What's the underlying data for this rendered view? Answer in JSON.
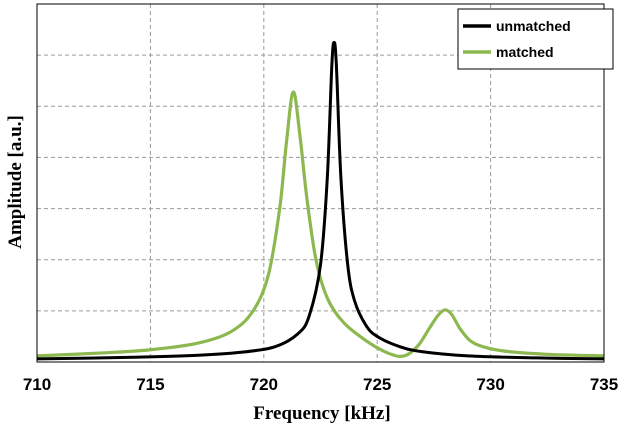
{
  "chart_data": {
    "type": "line",
    "xlabel": "Frequency [kHz]",
    "ylabel": "Amplitude [a.u.]",
    "xlim": [
      710,
      735
    ],
    "ylim": [
      0,
      7
    ],
    "x_ticks": [
      710,
      715,
      720,
      725,
      730,
      735
    ],
    "y_tick_labels_shown": false,
    "grid": true,
    "legend_position": "top-right",
    "series": [
      {
        "name": "unmatched",
        "color": "#000000",
        "x": [
          710,
          714,
          717,
          719,
          720.5,
          721.5,
          722,
          722.5,
          722.8,
          723.0,
          723.1,
          723.2,
          723.4,
          723.7,
          724.0,
          724.5,
          725,
          726,
          727,
          729,
          732,
          735
        ],
        "y": [
          0.06,
          0.09,
          0.13,
          0.19,
          0.3,
          0.55,
          0.9,
          1.9,
          3.6,
          5.8,
          6.25,
          5.8,
          3.6,
          1.9,
          1.2,
          0.72,
          0.5,
          0.3,
          0.2,
          0.12,
          0.08,
          0.06
        ]
      },
      {
        "name": "matched",
        "color": "#8db84f",
        "x": [
          710,
          713,
          715,
          717,
          718.5,
          719.5,
          720.2,
          720.7,
          721.0,
          721.3,
          721.6,
          721.9,
          722.3,
          722.8,
          723.5,
          724.5,
          725.5,
          726.2,
          726.8,
          727.3,
          727.7,
          728.0,
          728.3,
          728.7,
          729.3,
          730.5,
          732.5,
          735
        ],
        "y": [
          0.12,
          0.18,
          0.24,
          0.36,
          0.58,
          0.98,
          1.7,
          3.0,
          4.3,
          5.28,
          4.4,
          3.2,
          2.0,
          1.25,
          0.78,
          0.42,
          0.17,
          0.12,
          0.32,
          0.66,
          0.92,
          1.02,
          0.92,
          0.62,
          0.36,
          0.22,
          0.15,
          0.12
        ]
      }
    ]
  }
}
